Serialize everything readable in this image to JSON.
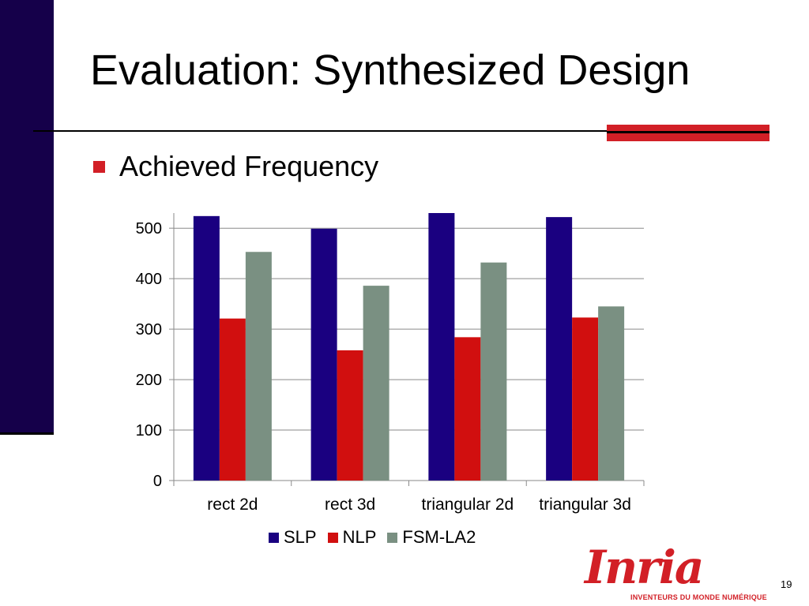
{
  "slide": {
    "title": "Evaluation: Synthesized Design",
    "bullet": "Achieved Frequency",
    "page_number": "19",
    "logo_text": "Inria",
    "logo_tagline": "INVENTEURS DU MONDE NUMÉRIQUE",
    "colors": {
      "sidebar": "#15004a",
      "accent": "#d21f26"
    }
  },
  "chart_data": {
    "type": "bar",
    "categories": [
      "rect 2d",
      "rect 3d",
      "triangular 2d",
      "triangular 3d"
    ],
    "series": [
      {
        "name": "SLP",
        "color": "#1a0080",
        "values": [
          524,
          499,
          530,
          522
        ]
      },
      {
        "name": "NLP",
        "color": "#d10f0f",
        "values": [
          321,
          258,
          284,
          323
        ]
      },
      {
        "name": "FSM-LA2",
        "color": "#7a9082",
        "values": [
          453,
          386,
          432,
          345
        ]
      }
    ],
    "yticks": [
      "0",
      "100",
      "200",
      "300",
      "400",
      "500"
    ],
    "ylim": [
      0,
      530
    ],
    "grid": true,
    "legend": "bottom"
  }
}
